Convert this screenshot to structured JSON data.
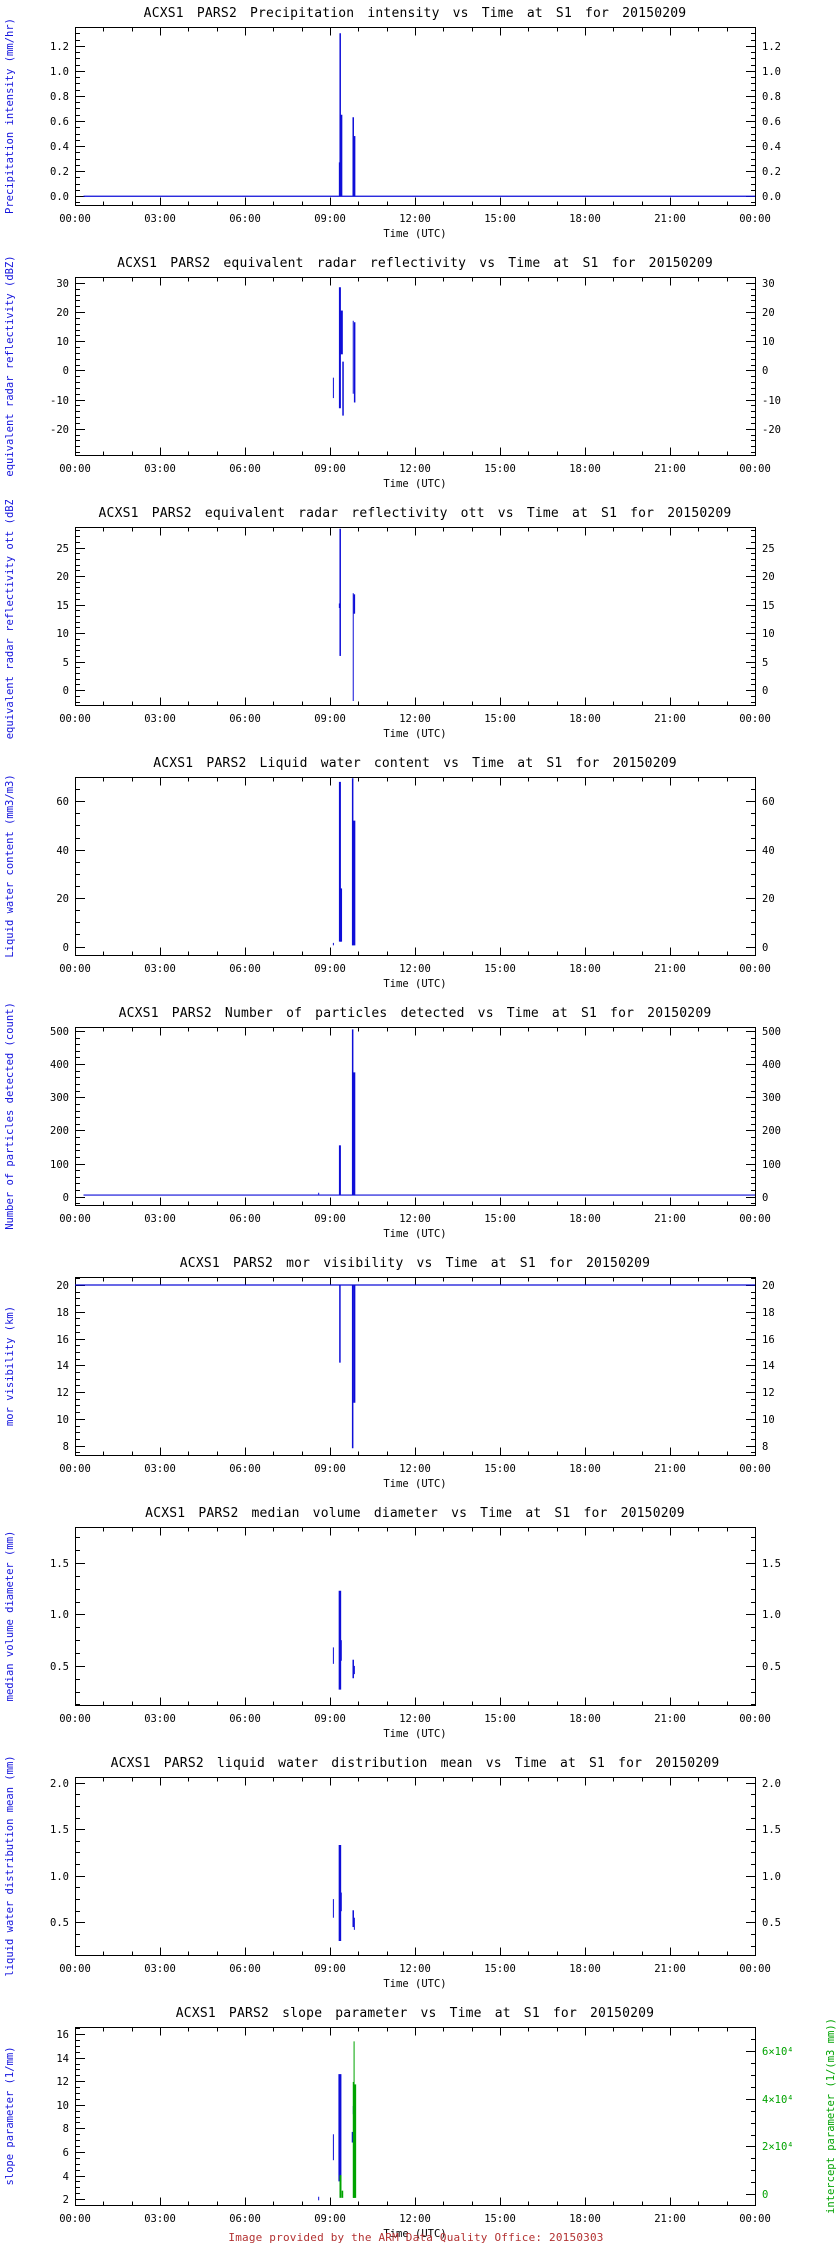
{
  "page": {
    "background": "#ffffff",
    "footer": {
      "text": "Image provided by the ARM Data Quality Office: 20150303",
      "color": "#b23131"
    }
  },
  "colors": {
    "axis": "#000000",
    "data_blue": "#0e0ed8",
    "label_blue": "#1515dd",
    "green": "#00a300"
  },
  "x_axis": {
    "label": "Time (UTC)",
    "tick_labels": [
      "00:00",
      "03:00",
      "06:00",
      "09:00",
      "12:00",
      "15:00",
      "18:00",
      "21:00",
      "00:00"
    ],
    "tick_hours": [
      0,
      3,
      6,
      9,
      12,
      15,
      18,
      21,
      24
    ],
    "minor_step_hours": 1,
    "range_hours": [
      0,
      24
    ]
  },
  "chart_data": [
    {
      "type": "line",
      "title": "ACXS1 PARS2 Precipitation intensity vs Time at S1 for 20150209",
      "ylabel": "Precipitation intensity (mm/hr)",
      "ylim": [
        -0.07,
        1.35
      ],
      "yticks": [
        0,
        0.2,
        0.4,
        0.6,
        0.8,
        1.0,
        1.2
      ],
      "ytick_labels": [
        "0.0",
        "0.2",
        "0.4",
        "0.6",
        "0.8",
        "1.0",
        "1.2"
      ],
      "yminor": 4,
      "series": [
        {
          "name": "precipitation_intensity",
          "color": "#0e0ed8",
          "line": [
            [
              0.3,
              0
            ],
            [
              24,
              0
            ]
          ],
          "spikes": [
            [
              9.33,
              0,
              0.27,
              1
            ],
            [
              9.36,
              0,
              1.3,
              1.5
            ],
            [
              9.4,
              0,
              0.65,
              2
            ],
            [
              9.82,
              0,
              0.63,
              1.5
            ],
            [
              9.86,
              0,
              0.48,
              2
            ]
          ]
        }
      ]
    },
    {
      "type": "line",
      "title": "ACXS1 PARS2 equivalent radar reflectivity vs Time at S1 for 20150209",
      "ylabel": "equivalent radar reflectivity (dBZ)",
      "ylim": [
        -29,
        32
      ],
      "yticks": [
        -20,
        -10,
        0,
        10,
        20,
        30
      ],
      "ytick_labels": [
        "-20",
        "-10",
        "0",
        "10",
        "20",
        "30"
      ],
      "yminor": 5,
      "series": [
        {
          "name": "equivalent_radar_reflectivity",
          "color": "#0e0ed8",
          "spikes": [
            [
              9.12,
              -9.5,
              -2.5,
              1
            ],
            [
              9.35,
              -13,
              28.5,
              2
            ],
            [
              9.4,
              5.5,
              20.5,
              3
            ],
            [
              9.46,
              -15.5,
              3,
              1.5
            ],
            [
              9.82,
              -8,
              17,
              1
            ],
            [
              9.87,
              -11,
              16.5,
              1.5
            ]
          ]
        }
      ]
    },
    {
      "type": "line",
      "title": "ACXS1 PARS2 equivalent radar reflectivity ott vs Time at S1 for 20150209",
      "ylabel": "equivalent radar reflectivity ott (dBZ)",
      "ylim": [
        -2.6,
        28.6
      ],
      "yticks": [
        0,
        5,
        10,
        15,
        20,
        25
      ],
      "ytick_labels": [
        "0",
        "5",
        "10",
        "15",
        "20",
        "25"
      ],
      "yminor": 5,
      "series": [
        {
          "name": "equivalent_radar_reflectivity_ott",
          "color": "#0e0ed8",
          "spikes": [
            [
              9.33,
              14.4,
              15.2,
              1
            ],
            [
              9.36,
              6,
              28.3,
              1.5
            ],
            [
              9.82,
              -1.9,
              17,
              1
            ],
            [
              9.86,
              13.4,
              16.8,
              1.5
            ]
          ]
        }
      ]
    },
    {
      "type": "line",
      "title": "ACXS1 PARS2 Liquid water content vs Time at S1 for 20150209",
      "ylabel": "Liquid water content (mm3/m3)",
      "ylim": [
        -3.5,
        70
      ],
      "yticks": [
        0,
        20,
        40,
        60
      ],
      "ytick_labels": [
        "0",
        "20",
        "40",
        "60"
      ],
      "yminor": 4,
      "series": [
        {
          "name": "liquid_water_content",
          "color": "#0e0ed8",
          "spikes": [
            [
              9.12,
              0.5,
              1.5,
              1
            ],
            [
              9.35,
              2,
              68,
              2
            ],
            [
              9.39,
              2,
              24,
              2
            ],
            [
              9.8,
              0.5,
              69.5,
              1.5
            ],
            [
              9.85,
              0.5,
              52,
              2.5
            ]
          ]
        }
      ]
    },
    {
      "type": "line",
      "title": "ACXS1 PARS2 Number of particles detected vs Time at S1 for 20150209",
      "ylabel": "Number of particles detected (count)",
      "ylim": [
        -25,
        512
      ],
      "yticks": [
        0,
        100,
        200,
        300,
        400,
        500
      ],
      "ytick_labels": [
        "0",
        "100",
        "200",
        "300",
        "400",
        "500"
      ],
      "yminor": 5,
      "series": [
        {
          "name": "number_of_particles_detected",
          "color": "#0e0ed8",
          "line": [
            [
              0.3,
              5
            ],
            [
              24,
              5
            ]
          ],
          "spikes": [
            [
              8.6,
              5,
              12,
              1
            ],
            [
              9.35,
              5,
              155,
              2
            ],
            [
              9.8,
              5,
              505,
              1.5
            ],
            [
              9.84,
              5,
              375,
              3
            ]
          ]
        }
      ]
    },
    {
      "type": "line",
      "title": "ACXS1 PARS2 mor visibility vs Time at S1 for 20150209",
      "ylabel": "mor visibility (km)",
      "ylim": [
        7.3,
        20.6
      ],
      "yticks": [
        8,
        10,
        12,
        14,
        16,
        18,
        20
      ],
      "ytick_labels": [
        "8",
        "10",
        "12",
        "14",
        "16",
        "18",
        "20"
      ],
      "yminor": 4,
      "series": [
        {
          "name": "mor_visibility",
          "color": "#0e0ed8",
          "line": [
            [
              0,
              20
            ],
            [
              24,
              20
            ]
          ],
          "spikes": [
            [
              9.35,
              14.2,
              20,
              1.5
            ],
            [
              9.8,
              7.8,
              20,
              1.5
            ],
            [
              9.86,
              11.2,
              20,
              2
            ]
          ]
        }
      ]
    },
    {
      "type": "line",
      "title": "ACXS1 PARS2 median volume diameter vs Time at S1 for 20150209",
      "ylabel": "median volume diameter (mm)",
      "ylim": [
        0.12,
        1.85
      ],
      "yticks": [
        0.5,
        1.0,
        1.5
      ],
      "ytick_labels": [
        "0.5",
        "1.0",
        "1.5"
      ],
      "yminor": 4,
      "series": [
        {
          "name": "median_volume_diameter",
          "color": "#0e0ed8",
          "spikes": [
            [
              9.12,
              0.52,
              0.68,
              1
            ],
            [
              9.35,
              0.27,
              1.23,
              2.5
            ],
            [
              9.39,
              0.55,
              0.75,
              1.5
            ],
            [
              9.82,
              0.38,
              0.56,
              1.5
            ],
            [
              9.86,
              0.42,
              0.5,
              1
            ]
          ]
        }
      ]
    },
    {
      "type": "line",
      "title": "ACXS1 PARS2 liquid water distribution mean vs Time at S1 for 20150209",
      "ylabel": "liquid water distribution mean (mm)",
      "ylim": [
        0.15,
        2.06
      ],
      "yticks": [
        0.5,
        1.0,
        1.5,
        2.0
      ],
      "ytick_labels": [
        "0.5",
        "1.0",
        "1.5",
        "2.0"
      ],
      "yminor": 4,
      "series": [
        {
          "name": "liquid_water_distribution_mean",
          "color": "#0e0ed8",
          "spikes": [
            [
              9.12,
              0.55,
              0.75,
              1
            ],
            [
              9.35,
              0.3,
              1.33,
              2.5
            ],
            [
              9.39,
              0.62,
              0.82,
              1.5
            ],
            [
              9.82,
              0.45,
              0.63,
              1.5
            ],
            [
              9.86,
              0.42,
              0.55,
              1
            ]
          ]
        }
      ]
    },
    {
      "type": "line",
      "title": "ACXS1 PARS2 slope parameter vs Time at S1 for 20150209",
      "ylabel": "slope parameter (1/mm)",
      "ylim": [
        1.5,
        16.6
      ],
      "yticks": [
        2,
        4,
        6,
        8,
        10,
        12,
        14,
        16
      ],
      "ytick_labels": [
        "2",
        "4",
        "6",
        "8",
        "10",
        "12",
        "14",
        "16"
      ],
      "yminor": 4,
      "y2": {
        "label": "intercept parameter (1/(m3 mm))",
        "color": "#00a300",
        "ylim": [
          -4500,
          70000
        ],
        "yticks": [
          0,
          20000,
          40000,
          60000
        ],
        "ytick_labels": [
          "0",
          "2×10⁴",
          "4×10⁴",
          "6×10⁴"
        ],
        "yminor": 4
      },
      "series": [
        {
          "name": "slope_parameter",
          "color": "#0e0ed8",
          "spikes": [
            [
              8.6,
              1.9,
              2.2,
              1
            ],
            [
              9.12,
              5.3,
              7.5,
              1
            ],
            [
              9.35,
              3.5,
              12.6,
              3
            ],
            [
              9.82,
              6.8,
              7.7,
              3
            ],
            [
              9.84,
              9.2,
              9.9,
              2
            ]
          ]
        },
        {
          "name": "intercept_parameter",
          "color": "#00a300",
          "axis": "y2",
          "spikes": [
            [
              9.37,
              -1500,
              8000,
              2
            ],
            [
              9.44,
              -1500,
              1500,
              1.5
            ],
            [
              9.83,
              -1500,
              47000,
              1.5
            ],
            [
              9.85,
              -1500,
              64000,
              1
            ],
            [
              9.87,
              -1500,
              46000,
              3
            ]
          ]
        }
      ]
    }
  ]
}
